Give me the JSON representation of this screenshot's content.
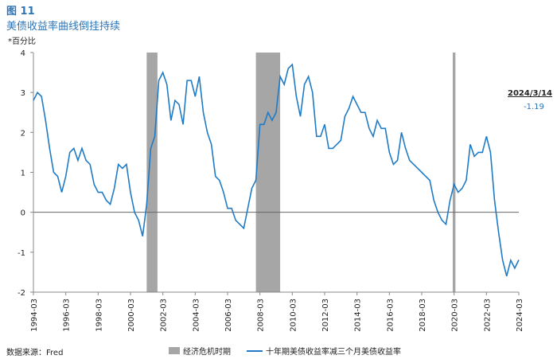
{
  "chart_data": {
    "type": "line",
    "title": "图 11",
    "subtitle": "美债收益率曲线倒挂持续",
    "y_label": "*百分比",
    "source": "数据来源：Fred",
    "x": [
      "1994-03",
      "1994-06",
      "1994-09",
      "1994-12",
      "1995-03",
      "1995-06",
      "1995-09",
      "1995-12",
      "1996-03",
      "1996-06",
      "1996-09",
      "1996-12",
      "1997-03",
      "1997-06",
      "1997-09",
      "1997-12",
      "1998-03",
      "1998-06",
      "1998-09",
      "1998-12",
      "1999-03",
      "1999-06",
      "1999-09",
      "1999-12",
      "2000-03",
      "2000-06",
      "2000-09",
      "2000-12",
      "2001-03",
      "2001-06",
      "2001-09",
      "2001-12",
      "2002-03",
      "2002-06",
      "2002-09",
      "2002-12",
      "2003-03",
      "2003-06",
      "2003-09",
      "2003-12",
      "2004-03",
      "2004-06",
      "2004-09",
      "2004-12",
      "2005-03",
      "2005-06",
      "2005-09",
      "2005-12",
      "2006-03",
      "2006-06",
      "2006-09",
      "2006-12",
      "2007-03",
      "2007-06",
      "2007-09",
      "2007-12",
      "2008-03",
      "2008-06",
      "2008-09",
      "2008-12",
      "2009-03",
      "2009-06",
      "2009-09",
      "2009-12",
      "2010-03",
      "2010-06",
      "2010-09",
      "2010-12",
      "2011-03",
      "2011-06",
      "2011-09",
      "2011-12",
      "2012-03",
      "2012-06",
      "2012-09",
      "2012-12",
      "2013-03",
      "2013-06",
      "2013-09",
      "2013-12",
      "2014-03",
      "2014-06",
      "2014-09",
      "2014-12",
      "2015-03",
      "2015-06",
      "2015-09",
      "2015-12",
      "2016-03",
      "2016-06",
      "2016-09",
      "2016-12",
      "2017-03",
      "2017-06",
      "2017-09",
      "2017-12",
      "2018-03",
      "2018-06",
      "2018-09",
      "2018-12",
      "2019-03",
      "2019-06",
      "2019-09",
      "2019-12",
      "2020-03",
      "2020-06",
      "2020-09",
      "2020-12",
      "2021-03",
      "2021-06",
      "2021-09",
      "2021-12",
      "2022-03",
      "2022-06",
      "2022-09",
      "2022-12",
      "2023-03",
      "2023-06",
      "2023-09",
      "2023-12",
      "2024-03"
    ],
    "series": [
      {
        "name": "十年期美债收益率减三个月美债收益率",
        "color": "#1f7bc6",
        "values": [
          2.8,
          3.0,
          2.9,
          2.3,
          1.6,
          1.0,
          0.9,
          0.5,
          0.9,
          1.5,
          1.6,
          1.3,
          1.6,
          1.3,
          1.2,
          0.7,
          0.5,
          0.5,
          0.3,
          0.2,
          0.6,
          1.2,
          1.1,
          1.2,
          0.5,
          0.0,
          -0.2,
          -0.6,
          0.2,
          1.6,
          1.9,
          3.3,
          3.5,
          3.2,
          2.3,
          2.8,
          2.7,
          2.2,
          3.3,
          3.3,
          2.9,
          3.4,
          2.5,
          2.0,
          1.7,
          0.9,
          0.8,
          0.5,
          0.1,
          0.1,
          -0.2,
          -0.3,
          -0.4,
          0.1,
          0.6,
          0.8,
          2.2,
          2.2,
          2.5,
          2.3,
          2.5,
          3.4,
          3.2,
          3.6,
          3.7,
          2.9,
          2.4,
          3.2,
          3.4,
          3.0,
          1.9,
          1.9,
          2.2,
          1.6,
          1.6,
          1.7,
          1.8,
          2.4,
          2.6,
          2.9,
          2.7,
          2.5,
          2.5,
          2.1,
          1.9,
          2.3,
          2.1,
          2.1,
          1.5,
          1.2,
          1.3,
          2.0,
          1.6,
          1.3,
          1.2,
          1.1,
          1.0,
          0.9,
          0.8,
          0.3,
          0.0,
          -0.2,
          -0.3,
          0.3,
          0.7,
          0.5,
          0.6,
          0.8,
          1.7,
          1.4,
          1.5,
          1.5,
          1.9,
          1.5,
          0.3,
          -0.5,
          -1.2,
          -1.6,
          -1.2,
          -1.4,
          -1.19
        ]
      }
    ],
    "recession_name": "经济危机时期",
    "recession_color": "#a6a6a6",
    "recessions": [
      {
        "start": "2001-03",
        "end": "2001-11"
      },
      {
        "start": "2007-12",
        "end": "2009-06"
      },
      {
        "start": "2020-02",
        "end": "2020-04"
      }
    ],
    "xlim": [
      "1994-03",
      "2024-03"
    ],
    "xticks": [
      "1994-03",
      "1996-03",
      "1998-03",
      "2000-03",
      "2002-03",
      "2004-03",
      "2006-03",
      "2008-03",
      "2010-03",
      "2012-03",
      "2014-03",
      "2016-03",
      "2018-03",
      "2020-03",
      "2022-03",
      "2024-03"
    ],
    "ylim": [
      -2,
      4
    ],
    "yticks": [
      -2,
      -1,
      0,
      1,
      2,
      3,
      4
    ],
    "annotation": {
      "date": "2024/3/14",
      "value": -1.19
    }
  }
}
